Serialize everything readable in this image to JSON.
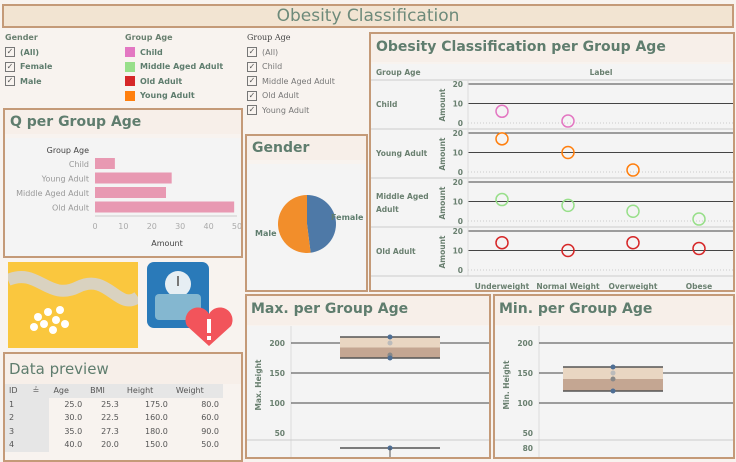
{
  "title": "Obesity Classification",
  "filters": {
    "gender": {
      "label": "Gender",
      "items": [
        "(All)",
        "Female",
        "Male"
      ]
    },
    "group_legend": {
      "label": "Group Age",
      "items": [
        {
          "label": "Child",
          "color": "#e377c2"
        },
        {
          "label": "Middle Aged Adult",
          "color": "#98df8a"
        },
        {
          "label": "Old Adult",
          "color": "#d62728"
        },
        {
          "label": "Young Adult",
          "color": "#ff7f0e"
        }
      ]
    },
    "group_filter": {
      "label": "Group Age",
      "items": [
        "(All)",
        "Child",
        "Middle Aged Adult",
        "Old Adult",
        "Young Adult"
      ]
    }
  },
  "q_panel": {
    "title": "Q per Group Age"
  },
  "gender_panel": {
    "title": "Gender"
  },
  "obesity_panel": {
    "title": "Obesity Classification per Group Age"
  },
  "max_panel": {
    "title": "Max. per Group Age"
  },
  "min_panel": {
    "title": "Min. per Group Age"
  },
  "data_preview": {
    "title": "Data preview",
    "columns": [
      "ID",
      "Age",
      "BMI",
      "Height",
      "Weight"
    ],
    "rows": [
      [
        "1",
        "25.0",
        "25.3",
        "175.0",
        "80.0"
      ],
      [
        "2",
        "30.0",
        "22.5",
        "160.0",
        "60.0"
      ],
      [
        "3",
        "35.0",
        "27.3",
        "180.0",
        "90.0"
      ],
      [
        "4",
        "40.0",
        "20.0",
        "150.0",
        "50.0"
      ]
    ]
  },
  "images": {
    "photo": "measuring-tape-and-pills",
    "icon": "scale-with-heart-alert-icon"
  },
  "chart_data": [
    {
      "type": "bar",
      "title": "Q per Group Age",
      "ylabel": "Group Age",
      "xlabel": "Amount",
      "categories": [
        "Child",
        "Young Adult",
        "Middle Aged Adult",
        "Old Adult"
      ],
      "values": [
        7,
        27,
        25,
        49
      ],
      "xlim": [
        0,
        50
      ],
      "ticks": [
        0,
        10,
        20,
        30,
        40,
        50
      ],
      "color": "#e899b2"
    },
    {
      "type": "pie",
      "title": "Gender",
      "categories": [
        "Female",
        "Male"
      ],
      "values": [
        48,
        52
      ],
      "colors": [
        "#4e79a7",
        "#f28e2b"
      ]
    },
    {
      "type": "scatter",
      "title": "Obesity Classification per Group Age",
      "row_header": "Group Age",
      "col_header": "Label",
      "ylabel": "Amount",
      "ylim": [
        0,
        20
      ],
      "ticks": [
        0,
        10,
        20
      ],
      "columns": [
        "Underweight",
        "Normal Weight",
        "Overweight",
        "Obese"
      ],
      "rows": [
        {
          "name": "Child",
          "color": "#e377c2",
          "values": [
            6,
            1,
            null,
            null
          ]
        },
        {
          "name": "Young Adult",
          "color": "#ff7f0e",
          "values": [
            17,
            10,
            1,
            null
          ]
        },
        {
          "name": "Middle Aged Adult",
          "color": "#98df8a",
          "values": [
            11,
            8,
            5,
            1
          ]
        },
        {
          "name": "Old Adult",
          "color": "#d62728",
          "values": [
            14,
            10,
            14,
            11
          ]
        }
      ]
    },
    {
      "type": "box",
      "title": "Max. per Group Age",
      "ylabel": "Max. Height",
      "ticks": [
        50,
        100,
        150,
        200
      ],
      "ylim": [
        40,
        220
      ],
      "points": [
        210,
        200,
        180,
        178,
        175
      ]
    },
    {
      "type": "box",
      "title": "Min. per Group Age",
      "ylabel": "Min. Height",
      "ticks": [
        50,
        100,
        150,
        200
      ],
      "ylim": [
        40,
        220
      ],
      "points": [
        160,
        150,
        140,
        120
      ],
      "next_tick": "80"
    }
  ]
}
